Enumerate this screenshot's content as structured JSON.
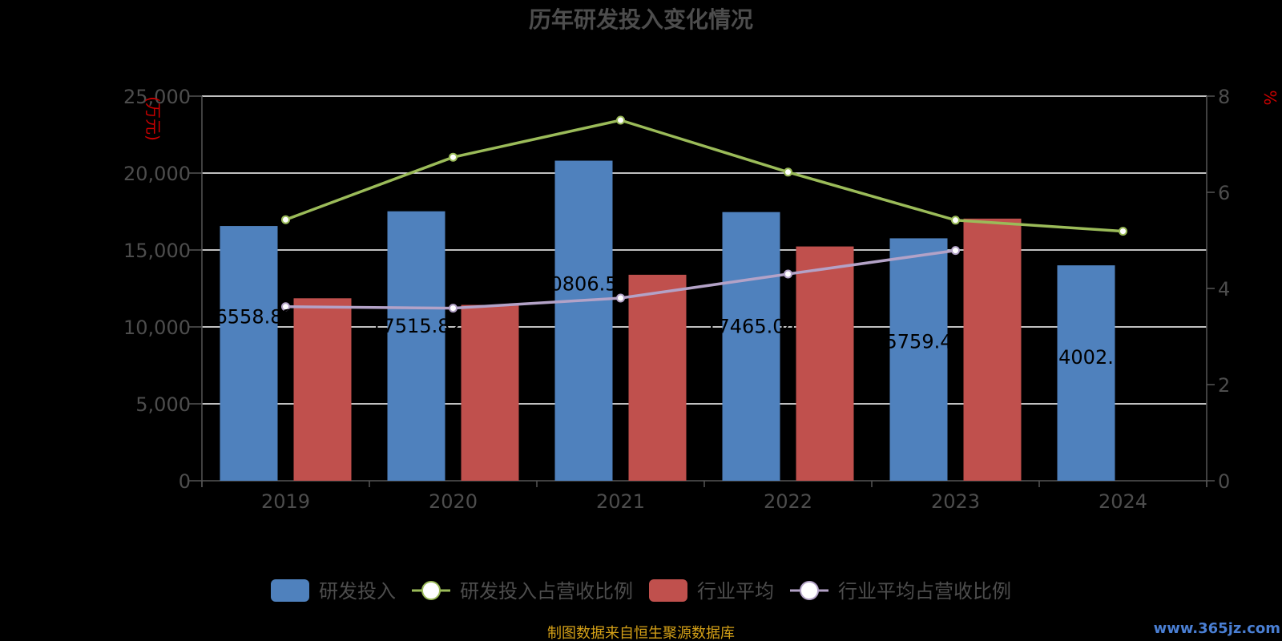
{
  "chart_data": {
    "type": "bar",
    "title": "历年研发投入变化情况",
    "y_left_unit": "(万元)",
    "y_right_unit": "%",
    "categories": [
      "2019",
      "2020",
      "2021",
      "2022",
      "2023",
      "2024"
    ],
    "ylim_left": [
      0,
      25000
    ],
    "ylim_right": [
      0,
      8
    ],
    "y_left_ticks": [
      "0",
      "5,000",
      "10,000",
      "15,000",
      "20,000",
      "25,000"
    ],
    "y_right_ticks": [
      "0",
      "2",
      "4",
      "6",
      "8"
    ],
    "grid": true,
    "legend_position": "bottom",
    "series": [
      {
        "name": "研发投入",
        "type": "bar",
        "axis": "left",
        "color": "#4f81bd",
        "values": [
          16558.82,
          17515.82,
          20806.51,
          17465.04,
          15759.45,
          14002.6
        ],
        "labels": [
          "16558.82",
          "17515.82",
          "20806.51",
          "17465.04",
          "15759.45",
          "14002.6"
        ]
      },
      {
        "name": "研发投入占营收比例",
        "type": "line",
        "axis": "right",
        "color": "#9bbb59",
        "values": [
          5.43,
          6.73,
          7.5,
          6.42,
          5.42,
          5.19
        ]
      },
      {
        "name": "行业平均",
        "type": "bar",
        "axis": "left",
        "color": "#c0504d",
        "values": [
          11860,
          11430,
          13390,
          15230,
          17040,
          null
        ]
      },
      {
        "name": "行业平均占营收比例",
        "type": "line",
        "axis": "right",
        "color": "#b3a2c7",
        "values": [
          3.62,
          3.59,
          3.8,
          4.3,
          4.79,
          null
        ]
      }
    ],
    "source_note": "制图数据来自恒生聚源数据库",
    "watermark": "www.365jz.com"
  }
}
